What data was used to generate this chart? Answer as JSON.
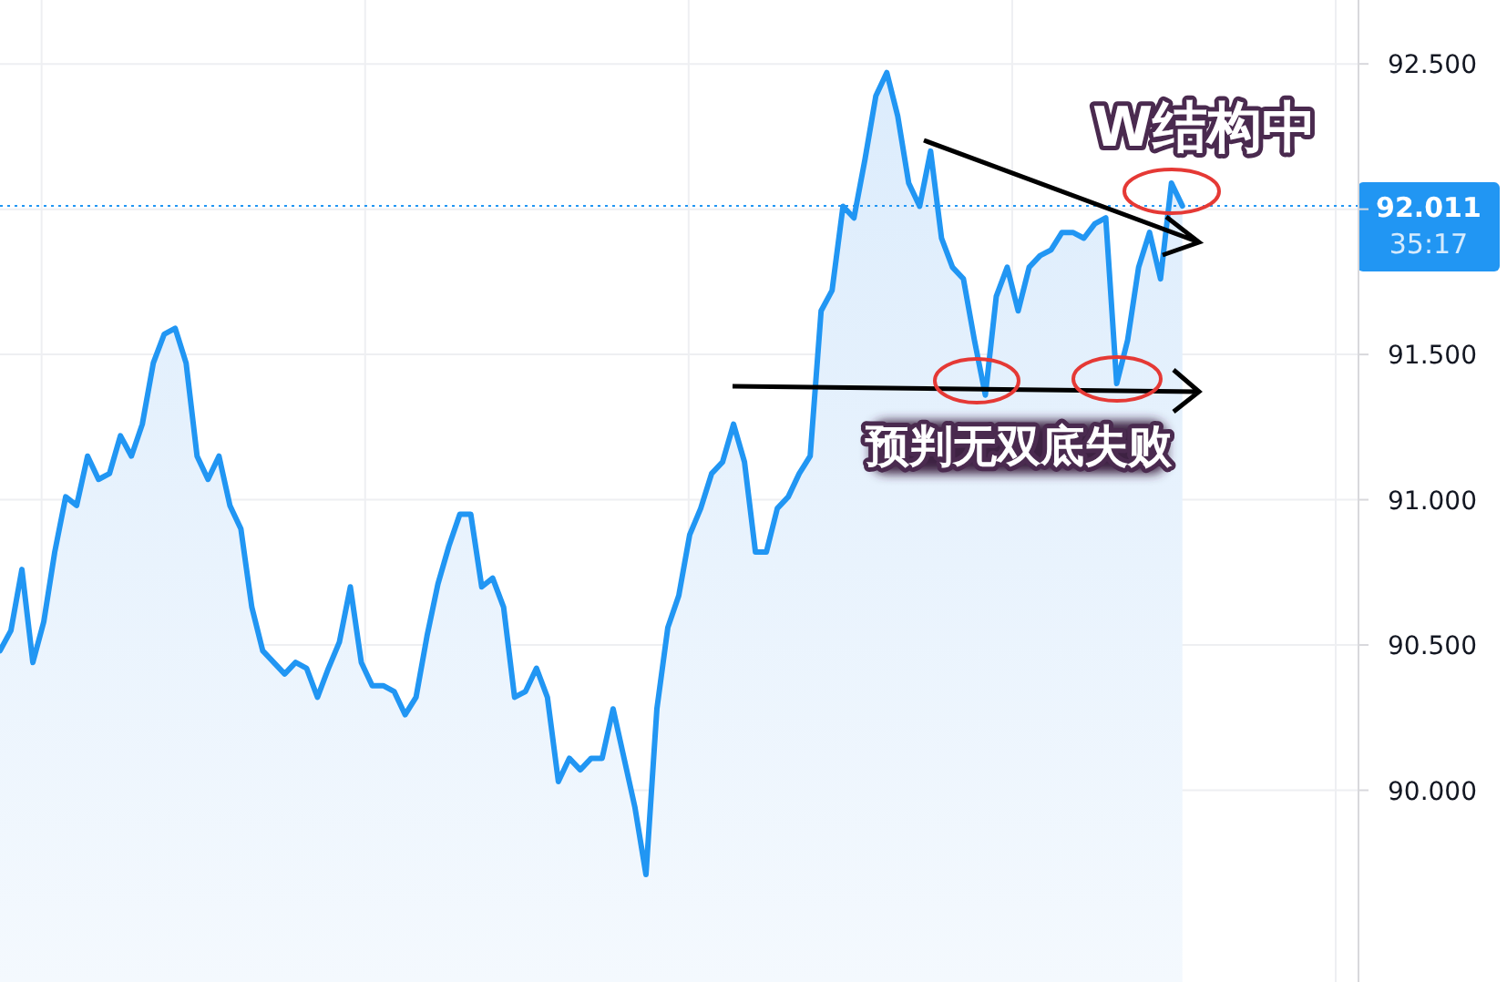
{
  "chart_data": {
    "type": "area",
    "color": "#2196f3",
    "categories": [
      null,
      null,
      null,
      null,
      null,
      null,
      null,
      null,
      null,
      null,
      null,
      null,
      null,
      null,
      null,
      null,
      null,
      null,
      null,
      null,
      null,
      null,
      null,
      null,
      null,
      null,
      null,
      null,
      null,
      null,
      null,
      null,
      null,
      null,
      null,
      null,
      null,
      null,
      null,
      null,
      null,
      null,
      null,
      null,
      null,
      null,
      null,
      null,
      null,
      null,
      null,
      null,
      null,
      null,
      null,
      null,
      null,
      null,
      null,
      null,
      null,
      null,
      null,
      null,
      null,
      null,
      null,
      null,
      null,
      null,
      null,
      null,
      null,
      null,
      null,
      null,
      null,
      null,
      null,
      null,
      null,
      null,
      null,
      null,
      null,
      null,
      null,
      null,
      null,
      null,
      null,
      null,
      null,
      null,
      null,
      null,
      null,
      null,
      null,
      null,
      null,
      null,
      null,
      null,
      null,
      null,
      null,
      null,
      null,
      null,
      null,
      null,
      null,
      null,
      null,
      null,
      null,
      null,
      null,
      null,
      null,
      null,
      null,
      null,
      null
    ],
    "values": [
      90.48,
      90.55,
      90.76,
      90.44,
      90.58,
      90.82,
      91.01,
      90.98,
      91.15,
      91.07,
      91.09,
      91.22,
      91.15,
      91.26,
      91.47,
      91.57,
      91.59,
      91.47,
      91.15,
      91.07,
      91.15,
      90.98,
      90.9,
      90.63,
      90.48,
      90.44,
      90.4,
      90.44,
      90.42,
      90.32,
      90.42,
      90.51,
      90.7,
      90.44,
      90.36,
      90.36,
      90.34,
      90.26,
      90.32,
      90.53,
      90.71,
      90.84,
      90.95,
      90.95,
      90.7,
      90.73,
      90.63,
      90.32,
      90.34,
      90.42,
      90.32,
      90.03,
      90.11,
      90.07,
      90.11,
      90.11,
      90.28,
      90.11,
      89.94,
      89.71,
      90.28,
      90.56,
      90.67,
      90.88,
      90.97,
      91.09,
      91.13,
      91.26,
      91.13,
      90.82,
      90.82,
      90.97,
      91.01,
      91.09,
      91.15,
      91.65,
      91.72,
      92.01,
      91.97,
      92.17,
      92.39,
      92.47,
      92.32,
      92.09,
      92.01,
      92.2,
      91.9,
      91.8,
      91.76,
      91.55,
      91.36,
      91.7,
      91.8,
      91.65,
      91.8,
      91.84,
      91.86,
      91.92,
      91.92,
      91.9,
      91.95,
      91.97,
      91.4,
      91.55,
      91.8,
      91.92,
      91.76,
      92.09,
      92.011,
      null,
      null,
      null,
      null,
      null,
      null,
      null,
      null,
      null,
      null,
      null,
      null,
      null,
      null,
      null,
      null
    ],
    "ylim": [
      89.34,
      92.72
    ],
    "yticks": [
      {
        "value": 90,
        "label": "90.000"
      },
      {
        "value": 90.5,
        "label": "90.500"
      },
      {
        "value": 91,
        "label": "91.000"
      },
      {
        "value": 91.5,
        "label": "91.500"
      },
      {
        "value": 92,
        "label": null
      },
      {
        "value": 92.5,
        "label": "92.500"
      }
    ],
    "grid": true,
    "tick_labels": "y",
    "ref_lines": [
      {
        "axis": "y",
        "value": 92.011,
        "label": "92.011",
        "color": "#2196f3",
        "line_style": "dotted"
      }
    ],
    "annotations": [
      "35:17",
      "W结构中",
      "预判无双底失败"
    ]
  }
}
